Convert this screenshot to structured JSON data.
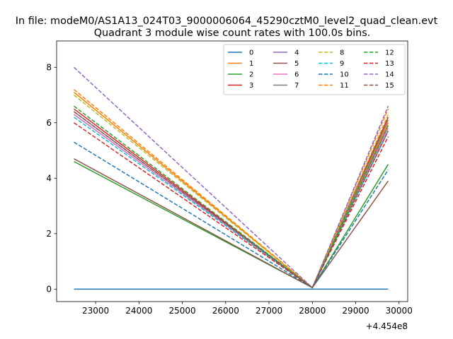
{
  "figure": {
    "suptitle": "In file: modeM0/AS1A13_024T03_9000006064_45290cztM0_level2_quad_clean.evt",
    "title": "Quadrant 3 module wise count rates with 100.0s bins.",
    "x_offset_label": "+4.454e8"
  },
  "chart_data": {
    "type": "line",
    "title": "Quadrant 3 module wise count rates with 100.0s bins.",
    "xlabel": "",
    "ylabel": "",
    "x_offset": 445400000,
    "xlim": [
      22100,
      30200
    ],
    "ylim": [
      -0.45,
      8.95
    ],
    "xticks": [
      23000,
      24000,
      25000,
      26000,
      27000,
      28000,
      29000,
      30000
    ],
    "yticks": [
      0,
      2,
      4,
      6,
      8
    ],
    "x": [
      22500,
      28000,
      29750
    ],
    "legend": {
      "location": "upper right",
      "ncol": 4
    },
    "series": [
      {
        "name": "0",
        "color": "#1f77b4",
        "style": "solid",
        "values": [
          0.0,
          0.0,
          0.0
        ]
      },
      {
        "name": "1",
        "color": "#ff7f0e",
        "style": "solid",
        "values": [
          7.1,
          0.05,
          6.0
        ]
      },
      {
        "name": "2",
        "color": "#2ca02c",
        "style": "solid",
        "values": [
          4.6,
          0.05,
          4.5
        ]
      },
      {
        "name": "3",
        "color": "#d62728",
        "style": "solid",
        "values": [
          6.5,
          0.05,
          6.2
        ]
      },
      {
        "name": "4",
        "color": "#9467bd",
        "style": "solid",
        "values": [
          6.3,
          0.05,
          5.9
        ]
      },
      {
        "name": "5",
        "color": "#8c564b",
        "style": "solid",
        "values": [
          4.7,
          0.05,
          3.9
        ]
      },
      {
        "name": "6",
        "color": "#e377c2",
        "style": "solid",
        "values": [
          6.3,
          0.05,
          5.8
        ]
      },
      {
        "name": "7",
        "color": "#7f7f7f",
        "style": "solid",
        "values": [
          6.4,
          0.05,
          6.1
        ]
      },
      {
        "name": "8",
        "color": "#bcbd22",
        "style": "dashed",
        "values": [
          7.0,
          0.05,
          6.3
        ]
      },
      {
        "name": "9",
        "color": "#17becf",
        "style": "dashed",
        "values": [
          6.2,
          0.05,
          5.7
        ]
      },
      {
        "name": "10",
        "color": "#1f77b4",
        "style": "dashed",
        "values": [
          5.3,
          0.05,
          4.3
        ]
      },
      {
        "name": "11",
        "color": "#ff7f0e",
        "style": "dashed",
        "values": [
          7.2,
          0.05,
          6.5
        ]
      },
      {
        "name": "12",
        "color": "#2ca02c",
        "style": "dashed",
        "values": [
          6.6,
          0.05,
          5.9
        ]
      },
      {
        "name": "13",
        "color": "#d62728",
        "style": "dashed",
        "values": [
          6.0,
          0.05,
          5.5
        ]
      },
      {
        "name": "14",
        "color": "#9467bd",
        "style": "dashed",
        "values": [
          8.0,
          0.05,
          6.6
        ]
      },
      {
        "name": "15",
        "color": "#8c564b",
        "style": "dashed",
        "values": [
          6.4,
          0.05,
          5.7
        ]
      }
    ]
  }
}
